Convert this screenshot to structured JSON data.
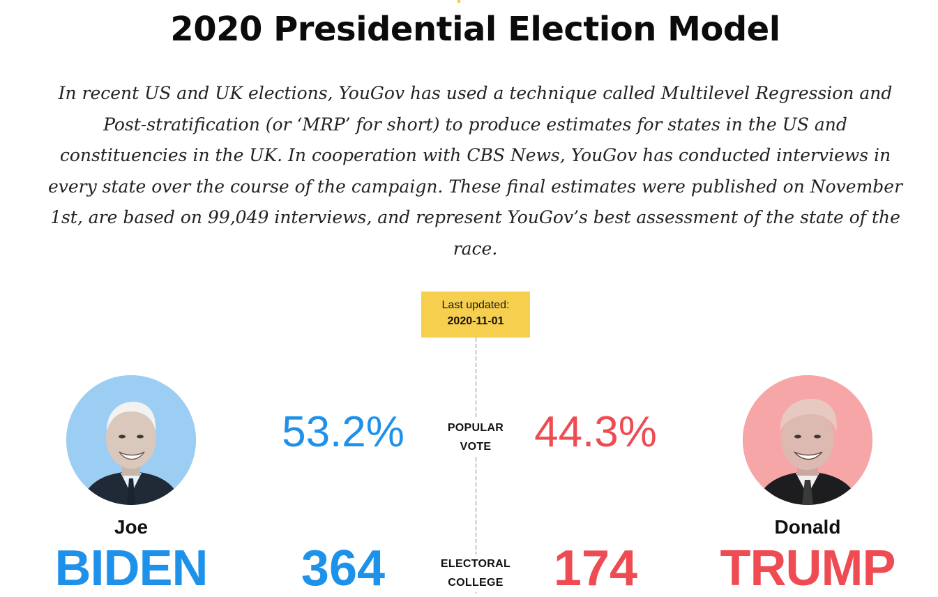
{
  "header": {
    "title": "2020 Presidential Election Model"
  },
  "intro": {
    "text": "In recent US and UK elections, YouGov has used a technique called Multilevel Regression and Post-stratification (or ‘MRP’ for short) to produce estimates for states in the US and constituencies in the UK. In cooperation with CBS News, YouGov has conducted interviews in every state over the course of the campaign. These final estimates were published on November 1st, are based on 99,049 interviews, and represent YouGov’s best assessment of the state of the race."
  },
  "updated": {
    "label": "Last updated:",
    "date": "2020-11-01"
  },
  "metrics": {
    "popular_vote_line1": "POPULAR",
    "popular_vote_line2": "VOTE",
    "electoral_college_line1": "ELECTORAL",
    "electoral_college_line2": "COLLEGE"
  },
  "candidates": {
    "biden": {
      "first_name": "Joe",
      "last_name": "BIDEN",
      "popular_vote": "53.2%",
      "electoral_votes": "364",
      "color": "#1e91ea",
      "portrait_bg": "#9ccdf2",
      "portrait_icon": "biden-portrait"
    },
    "trump": {
      "first_name": "Donald",
      "last_name": "TRUMP",
      "popular_vote": "44.3%",
      "electoral_votes": "174",
      "color": "#ef4b53",
      "portrait_bg": "#f6a6a6",
      "portrait_icon": "trump-portrait"
    }
  },
  "colors": {
    "accent_yellow": "#f6cf4e",
    "divider": "#dcdcdc"
  }
}
